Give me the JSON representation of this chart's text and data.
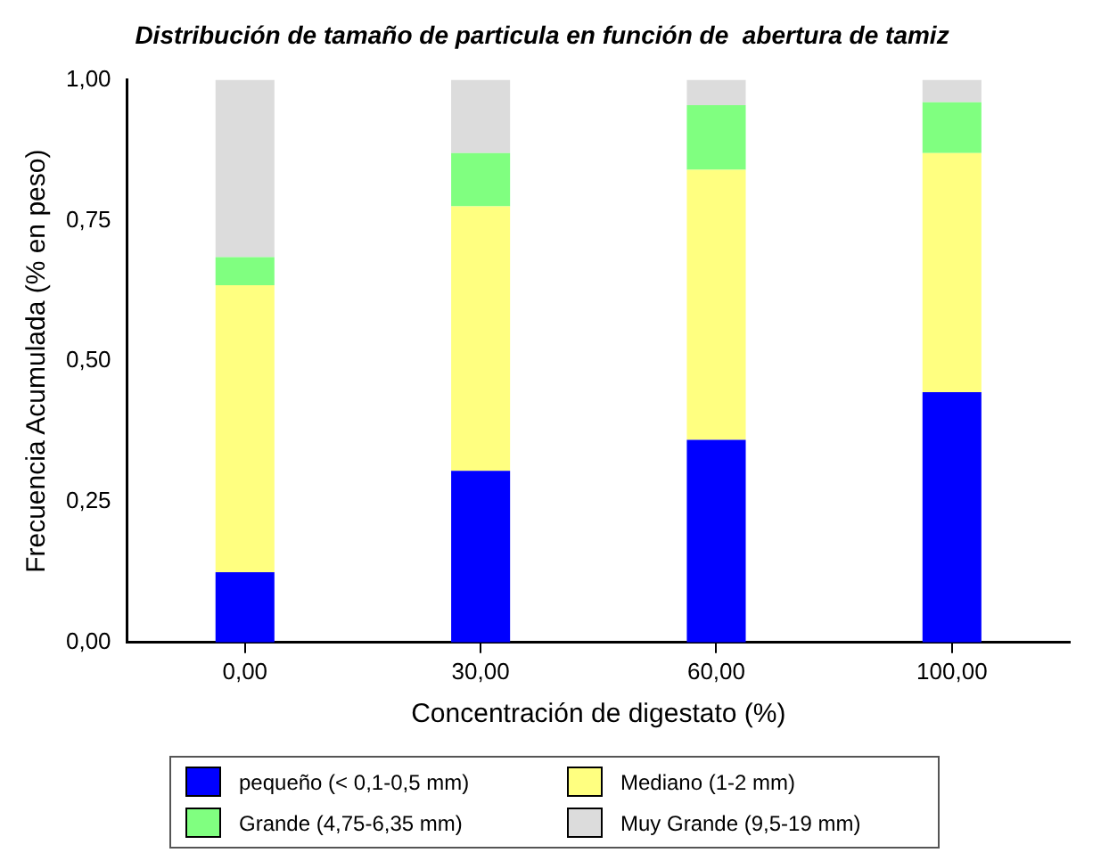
{
  "chart_data": {
    "type": "bar",
    "stacked": true,
    "title": "Distribución de tamaño de particula en función de  abertura de tamiz",
    "xlabel": "Concentración de digestato (%)",
    "ylabel": "Frecuencia Acumulada (% en peso)",
    "categories": [
      "0,00",
      "30,00",
      "60,00",
      "100,00"
    ],
    "series": [
      {
        "name": "pequeño (< 0,1-0,5 mm)",
        "color": "#0000ff",
        "values": [
          0.125,
          0.305,
          0.36,
          0.445
        ]
      },
      {
        "name": "Mediano (1-2 mm)",
        "color": "#ffff80",
        "values": [
          0.51,
          0.47,
          0.48,
          0.425
        ]
      },
      {
        "name": "Grande (4,75-6,35 mm)",
        "color": "#80ff80",
        "values": [
          0.05,
          0.095,
          0.115,
          0.09
        ]
      },
      {
        "name": "Muy Grande (9,5-19 mm)",
        "color": "#dcdcdc",
        "values": [
          0.315,
          0.13,
          0.045,
          0.04
        ]
      }
    ],
    "ylim": [
      0,
      1
    ],
    "yticks": [
      {
        "value": 0,
        "label": "0,00"
      },
      {
        "value": 0.25,
        "label": "0,25"
      },
      {
        "value": 0.5,
        "label": "0,50"
      },
      {
        "value": 0.75,
        "label": "0,75"
      },
      {
        "value": 1,
        "label": "1,00"
      }
    ],
    "grid": false,
    "legend": "bottom"
  }
}
